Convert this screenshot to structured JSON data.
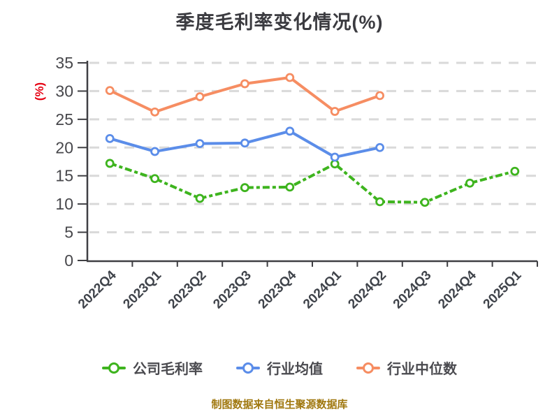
{
  "title": "季度毛利率变化情况(%)",
  "y_axis_unit_label": "(%)",
  "footer_note": "制图数据来自恒生聚源数据库",
  "colors": {
    "title_text": "#3B3B40",
    "axis_line": "#3F3F43",
    "tick_label": "#47474B",
    "y_unit_label": "#E60012",
    "gridline": "#D9D9D9",
    "legend_text": "#4A4A4F",
    "footer_text": "#A0780F",
    "series_company": "#3EB41E",
    "series_industry_avg": "#5B8DE9",
    "series_industry_median": "#F68D62"
  },
  "chart_data": {
    "type": "line",
    "title": "季度毛利率变化情况(%)",
    "xlabel": "",
    "ylabel": "(%)",
    "ylim": [
      0,
      35
    ],
    "ytick_step": 5,
    "yticks": [
      0,
      5,
      10,
      15,
      20,
      25,
      30,
      35
    ],
    "grid": "horizontal-dashed",
    "legend_position": "bottom",
    "categories": [
      "2022Q4",
      "2023Q1",
      "2023Q2",
      "2023Q3",
      "2023Q4",
      "2024Q1",
      "2024Q2",
      "2024Q3",
      "2024Q4",
      "2025Q1"
    ],
    "series": [
      {
        "name": "公司毛利率",
        "color": "#3EB41E",
        "line_style": "dashed",
        "values": [
          17.2,
          14.5,
          11.0,
          12.9,
          13.0,
          17.1,
          10.4,
          10.3,
          13.7,
          15.8
        ]
      },
      {
        "name": "行业均值",
        "color": "#5B8DE9",
        "line_style": "solid",
        "values": [
          21.6,
          19.3,
          20.7,
          20.8,
          22.9,
          18.3,
          20.0,
          null,
          null,
          null
        ]
      },
      {
        "name": "行业中位数",
        "color": "#F68D62",
        "line_style": "solid",
        "values": [
          30.1,
          26.3,
          29.0,
          31.3,
          32.4,
          26.4,
          29.2,
          null,
          null,
          null
        ]
      }
    ]
  },
  "legend": {
    "items": [
      {
        "label": "公司毛利率"
      },
      {
        "label": "行业均值"
      },
      {
        "label": "行业中位数"
      }
    ]
  }
}
